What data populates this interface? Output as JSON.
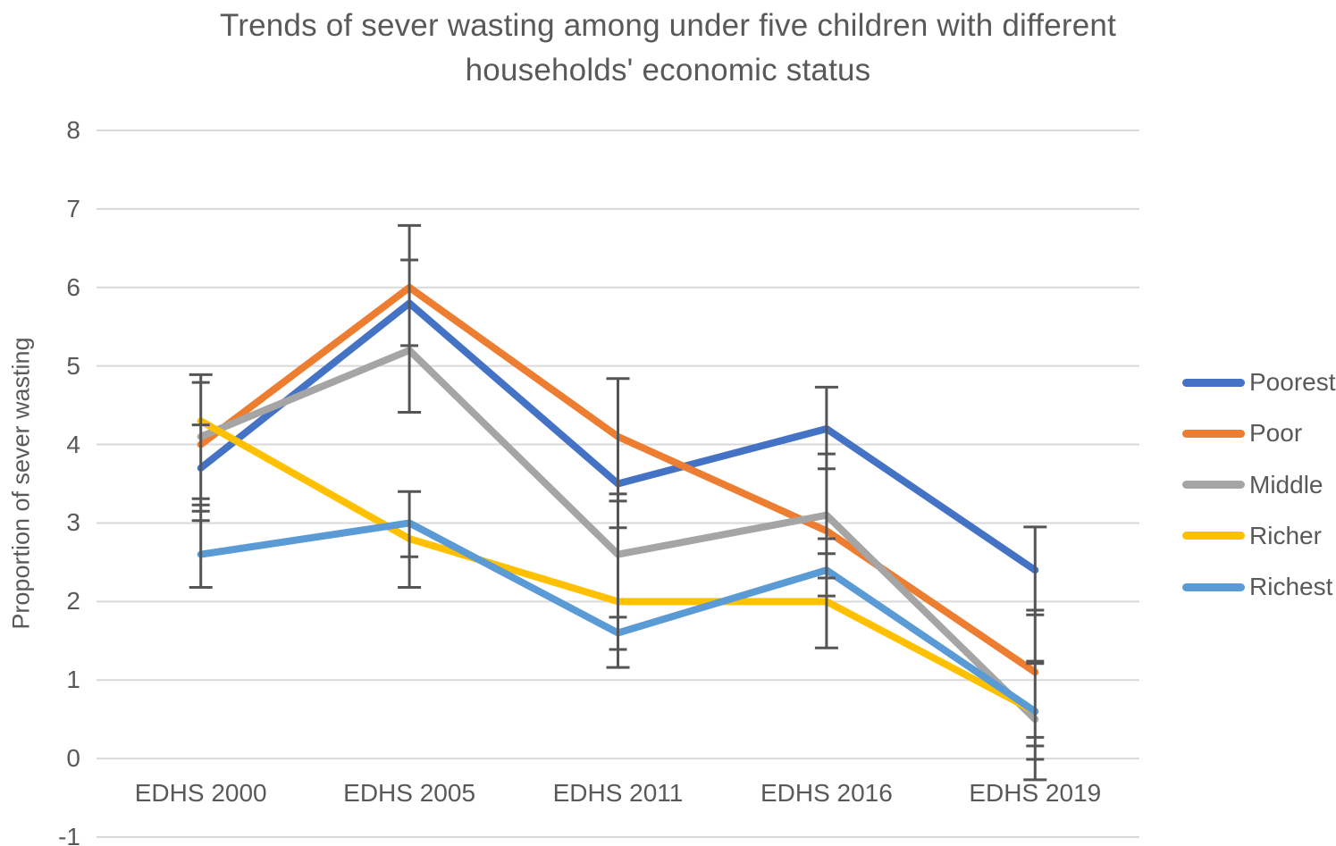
{
  "chart_data": {
    "type": "line",
    "title": "Trends of sever wasting among under five children with different households' economic status",
    "title_lines": [
      "Trends of sever wasting among under five children with different",
      "households' economic status"
    ],
    "xlabel": "",
    "ylabel": "Proportion of sever wasting",
    "categories": [
      "EDHS 2000",
      "EDHS 2005",
      "EDHS 2011",
      "EDHS 2016",
      "EDHS 2019"
    ],
    "series": [
      {
        "name": "Poorest",
        "color": "#4472C4",
        "values": [
          3.7,
          5.8,
          3.5,
          4.2,
          2.4
        ]
      },
      {
        "name": "Poor",
        "color": "#ED7D31",
        "values": [
          4.0,
          6.0,
          4.1,
          2.9,
          1.1
        ]
      },
      {
        "name": "Middle",
        "color": "#A5A5A5",
        "values": [
          4.1,
          5.2,
          2.6,
          3.1,
          0.5
        ]
      },
      {
        "name": "Richer",
        "color": "#FFC000",
        "values": [
          4.3,
          2.8,
          2.0,
          2.0,
          0.6
        ]
      },
      {
        "name": "Richest",
        "color": "#5B9BD5",
        "values": [
          2.6,
          3.0,
          1.6,
          2.4,
          0.6
        ]
      }
    ],
    "ylim": [
      -1,
      8
    ],
    "yticks": [
      8,
      7,
      6,
      5,
      4,
      3,
      2,
      1,
      0,
      -1
    ],
    "grid": true,
    "legend_position": "right",
    "error_bars": {
      "groups": [
        {
          "category": "EDHS 2000",
          "segments": [
            {
              "min": 2.18,
              "max": 4.89,
              "caps": [
                2.18,
                3.03,
                3.15,
                3.23,
                3.31,
                4.25,
                4.79,
                4.89
              ]
            }
          ]
        },
        {
          "category": "EDHS 2005",
          "segments": [
            {
              "min": 4.41,
              "max": 6.79,
              "caps": [
                4.41,
                5.26,
                6.35,
                6.79
              ]
            },
            {
              "min": 2.18,
              "max": 3.4,
              "caps": [
                2.18,
                2.57,
                3.4
              ]
            }
          ]
        },
        {
          "category": "EDHS 2011",
          "segments": [
            {
              "min": 1.16,
              "max": 4.84,
              "caps": [
                1.16,
                1.39,
                1.8,
                2.94,
                3.28,
                3.37,
                4.84
              ]
            }
          ]
        },
        {
          "category": "EDHS 2016",
          "segments": [
            {
              "min": 1.41,
              "max": 4.73,
              "caps": [
                1.41,
                2.07,
                2.3,
                2.61,
                2.8,
                3.69,
                3.88,
                4.73
              ]
            }
          ]
        },
        {
          "category": "EDHS 2019",
          "segments": [
            {
              "min": -0.27,
              "max": 2.95,
              "caps": [
                -0.27,
                -0.01,
                0.16,
                0.27,
                1.21,
                1.24,
                1.83,
                1.89,
                2.95
              ]
            }
          ]
        }
      ]
    }
  },
  "colors": {
    "text": "#595959",
    "gridline": "#D9D9D9",
    "error_bar": "#555555",
    "background": "#FFFFFF"
  }
}
